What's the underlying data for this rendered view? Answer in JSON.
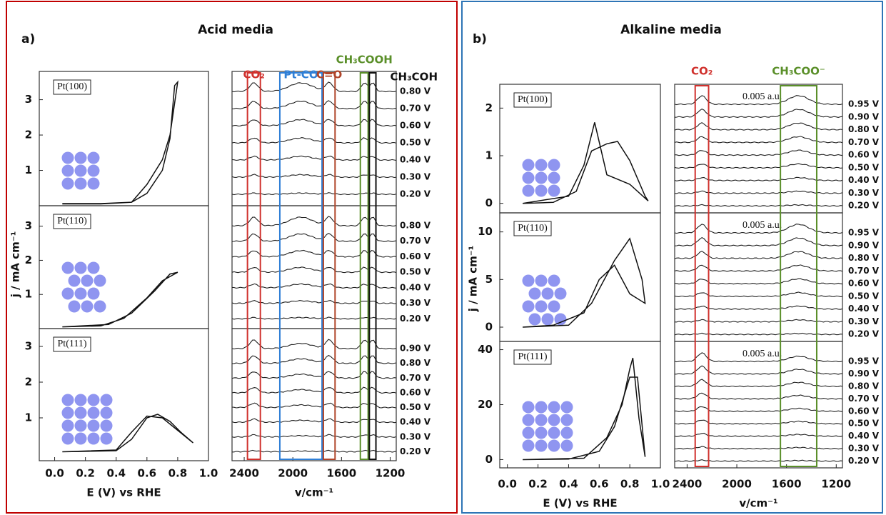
{
  "chart_data": [
    {
      "type": "cv",
      "panel_label": "a)",
      "panel_title": "Acid media",
      "xlabel": "E (V) vs RHE",
      "ylabel": "j / mA cm⁻¹",
      "xlim": [
        -0.1,
        1.0
      ],
      "xticks": [
        {
          "value": 0,
          "label": "0.0"
        },
        0.2,
        0.4,
        0.6,
        0.8,
        {
          "value": 1,
          "label": "1.0"
        }
      ],
      "subplots": [
        {
          "label": "Pt(100)",
          "ylim": [
            0,
            3.8
          ],
          "yticks": [
            1,
            2,
            3
          ],
          "x": [
            0.05,
            0.3,
            0.5,
            0.6,
            0.7,
            0.75,
            0.8,
            0.78,
            0.75,
            0.7,
            0.6,
            0.5,
            0.3,
            0.05
          ],
          "y": [
            0.05,
            0.05,
            0.1,
            0.6,
            1.3,
            2.0,
            3.5,
            3.4,
            1.9,
            1.0,
            0.35,
            0.1,
            0.06,
            0.06
          ]
        },
        {
          "label": "Pt(110)",
          "ylim": [
            0,
            3.6
          ],
          "yticks": [
            1,
            2,
            3
          ],
          "x": [
            0.05,
            0.3,
            0.45,
            0.6,
            0.7,
            0.8,
            0.75,
            0.65,
            0.5,
            0.35,
            0.05
          ],
          "y": [
            0.05,
            0.08,
            0.3,
            0.9,
            1.4,
            1.65,
            1.6,
            1.1,
            0.45,
            0.12,
            0.05
          ]
        },
        {
          "label": "Pt(111)",
          "ylim": [
            -0.2,
            3.5
          ],
          "yticks": [
            1,
            2,
            3
          ],
          "x": [
            0.05,
            0.4,
            0.5,
            0.6,
            0.67,
            0.75,
            0.82,
            0.9,
            0.8,
            0.7,
            0.6,
            0.5,
            0.4,
            0.05
          ],
          "y": [
            0.05,
            0.08,
            0.4,
            1.0,
            1.1,
            0.9,
            0.6,
            0.3,
            0.65,
            1.0,
            1.05,
            0.6,
            0.1,
            0.05
          ]
        }
      ]
    },
    {
      "type": "spectra",
      "xlabel": "v/cm⁻¹",
      "xlim": [
        2500,
        1150
      ],
      "xticks": [
        2400,
        2000,
        1600,
        1200
      ],
      "bands": [
        {
          "label": "CO₂",
          "color": "#d0312d",
          "range": [
            2373,
            2267
          ]
        },
        {
          "label": "Pt-CO",
          "color": "#2f7fd6",
          "range": [
            2107,
            1760
          ]
        },
        {
          "label": "C=O",
          "color": "#b0452a",
          "range": [
            1749,
            1653
          ]
        },
        {
          "label": "CH₃COOH",
          "color": "#5a8f29",
          "range": [
            1445,
            1381
          ]
        },
        {
          "label": "CH₃COH",
          "color": "#111111",
          "range": [
            1371,
            1317
          ]
        }
      ],
      "stacks": [
        [
          "0.80 V",
          "0.70 V",
          "0.60 V",
          "0.50 V",
          "0.40 V",
          "0.30 V",
          "0.20 V"
        ],
        [
          "0.80 V",
          "0.70 V",
          "0.60 V",
          "0.50 V",
          "0.40 V",
          "0.30 V",
          "0.20 V"
        ],
        [
          "0.90 V",
          "0.80 V",
          "0.70 V",
          "0.60 V",
          "0.50 V",
          "0.40 V",
          "0.30 V",
          "0.20 V"
        ]
      ]
    },
    {
      "type": "cv",
      "panel_label": "b)",
      "panel_title": "Alkaline media",
      "xlabel": "E (V) vs RHE",
      "ylabel": "j / mA cm⁻¹",
      "xlim": [
        -0.05,
        1.0
      ],
      "xticks": [
        {
          "value": 0,
          "label": "0.0"
        },
        0.2,
        0.4,
        0.6,
        0.8,
        {
          "value": 1,
          "label": "1.0"
        }
      ],
      "subplots": [
        {
          "label": "Pt(100)",
          "ylim": [
            -0.2,
            2.5
          ],
          "yticks": [
            0,
            1,
            2
          ],
          "x": [
            0.1,
            0.3,
            0.45,
            0.55,
            0.65,
            0.72,
            0.8,
            0.9,
            0.92,
            0.8,
            0.65,
            0.57,
            0.5,
            0.4,
            0.1
          ],
          "y": [
            0,
            0.02,
            0.25,
            1.1,
            1.25,
            1.3,
            0.9,
            0.15,
            0.05,
            0.4,
            0.6,
            1.7,
            0.8,
            0.15,
            0
          ]
        },
        {
          "label": "Pt(110)",
          "ylim": [
            -1.5,
            12
          ],
          "yticks": [
            0,
            5,
            10
          ],
          "x": [
            0.1,
            0.4,
            0.55,
            0.7,
            0.8,
            0.88,
            0.9,
            0.8,
            0.7,
            0.6,
            0.5,
            0.3,
            0.1
          ],
          "y": [
            0,
            0.2,
            2.5,
            7,
            9.3,
            5,
            2.5,
            3.5,
            6.5,
            5,
            1.5,
            0.2,
            0
          ]
        },
        {
          "label": "Pt(111)",
          "ylim": [
            -3,
            43
          ],
          "yticks": [
            0,
            20,
            40
          ],
          "x": [
            0.1,
            0.5,
            0.65,
            0.75,
            0.8,
            0.82,
            0.86,
            0.9,
            0.85,
            0.8,
            0.7,
            0.6,
            0.4,
            0.1
          ],
          "y": [
            0,
            0.5,
            8,
            20,
            33,
            37,
            15,
            1,
            30,
            30,
            12,
            3,
            0.2,
            0
          ]
        }
      ]
    },
    {
      "type": "spectra",
      "xlabel": "v/cm⁻¹",
      "xlim": [
        2500,
        1150
      ],
      "xticks": [
        2400,
        2000,
        1600,
        1200
      ],
      "scale_label": "0.005 a.u.",
      "bands": [
        {
          "label": "CO₂",
          "color": "#d0312d",
          "range": [
            2335,
            2227
          ]
        },
        {
          "label": "CH₃COO⁻",
          "color": "#5a8f29",
          "range": [
            1649,
            1357
          ]
        }
      ],
      "stacks": [
        [
          "0.95 V",
          "0.90 V",
          "0.80 V",
          "0.70 V",
          "0.60 V",
          "0.50 V",
          "0.40 V",
          "0.30 V",
          "0.20 V"
        ],
        [
          "0.95 V",
          "0.90 V",
          "0.80 V",
          "0.70 V",
          "0.60 V",
          "0.50 V",
          "0.40 V",
          "0.30 V",
          "0.20 V"
        ],
        [
          "0.95 V",
          "0.90 V",
          "0.80 V",
          "0.70 V",
          "0.60 V",
          "0.50 V",
          "0.40 V",
          "0.30 V",
          "0.20 V"
        ]
      ]
    }
  ]
}
